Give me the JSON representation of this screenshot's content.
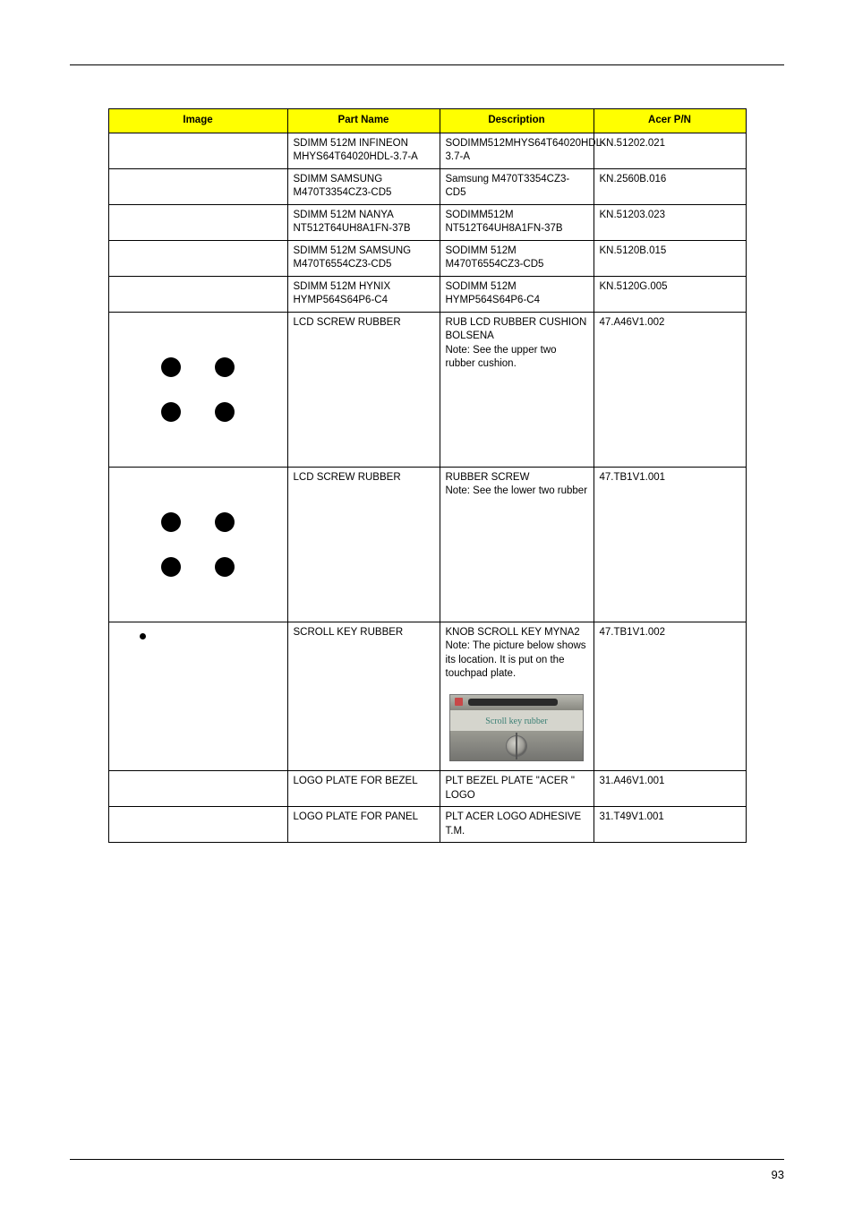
{
  "page_number": "93",
  "headers": {
    "image": "Image",
    "part_name": "Part Name",
    "description": "Description",
    "acer_pn": "Acer P/N"
  },
  "rows": [
    {
      "part_name": "SDIMM 512M INFINEON MHYS64T64020HDL-3.7-A",
      "description": "SODIMM512MHYS64T64020HDL-3.7-A",
      "acer_pn": "KN.51202.021"
    },
    {
      "part_name": "SDIMM SAMSUNG M470T3354CZ3-CD5",
      "description": "Samsung M470T3354CZ3-CD5",
      "acer_pn": "KN.2560B.016"
    },
    {
      "part_name": "SDIMM 512M NANYA NT512T64UH8A1FN-37B",
      "description": "SODIMM512M NT512T64UH8A1FN-37B",
      "acer_pn": "KN.51203.023"
    },
    {
      "part_name": "SDIMM 512M SAMSUNG M470T6554CZ3-CD5",
      "description": "SODIMM 512M M470T6554CZ3-CD5",
      "acer_pn": "KN.5120B.015"
    },
    {
      "part_name": "SDIMM 512M HYNIX HYMP564S64P6-C4",
      "description": "SODIMM 512M HYMP564S64P6-C4",
      "acer_pn": "KN.5120G.005"
    },
    {
      "part_name": "LCD SCREW RUBBER",
      "desc_main": "RUB LCD RUBBER CUSHION BOLSENA",
      "desc_note": "Note: See the upper two rubber cushion.",
      "acer_pn": "47.A46V1.002"
    },
    {
      "part_name": "LCD SCREW RUBBER",
      "desc_main": "RUBBER SCREW",
      "desc_note": "Note: See the lower two rubber",
      "acer_pn": "47.TB1V1.001"
    },
    {
      "part_name": "SCROLL KEY RUBBER",
      "desc_main": "KNOB SCROLL KEY MYNA2",
      "desc_note": "Note: The picture below shows its location. It is put on the touchpad plate.",
      "thumb_label": "Scroll key rubber",
      "acer_pn": "47.TB1V1.002"
    },
    {
      "part_name": "LOGO PLATE FOR BEZEL",
      "description": "PLT BEZEL PLATE \"ACER \" LOGO",
      "acer_pn": "31.A46V1.001"
    },
    {
      "part_name": "LOGO PLATE FOR PANEL",
      "description": "PLT ACER LOGO ADHESIVE T.M.",
      "acer_pn": "31.T49V1.001"
    }
  ]
}
